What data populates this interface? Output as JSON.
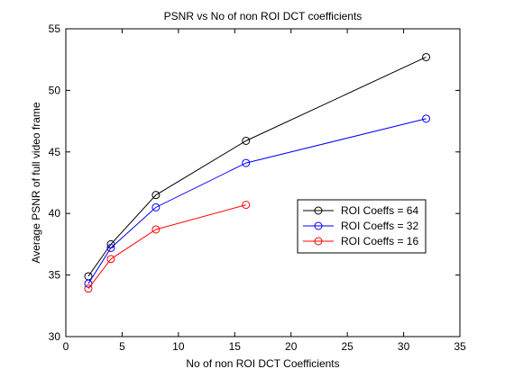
{
  "chart_data": {
    "type": "line",
    "title": "PSNR vs No of non ROI DCT coefficients",
    "xlabel": "No of non ROI DCT Coefficients",
    "ylabel": "Average PSNR of full video frame",
    "xlim": [
      0,
      35
    ],
    "ylim": [
      30,
      55
    ],
    "xticks": [
      0,
      5,
      10,
      15,
      20,
      25,
      30,
      35
    ],
    "yticks": [
      30,
      35,
      40,
      45,
      50,
      55
    ],
    "grid": false,
    "legend_position": "right",
    "marker": "circle",
    "series": [
      {
        "name": "ROI Coeffs = 64",
        "color": "#000000",
        "x": [
          2,
          4,
          8,
          16,
          32
        ],
        "y": [
          34.9,
          37.5,
          41.5,
          45.9,
          52.7
        ]
      },
      {
        "name": "ROI Coeffs = 32",
        "color": "#0000ff",
        "x": [
          2,
          4,
          8,
          16,
          32
        ],
        "y": [
          34.3,
          37.2,
          40.5,
          44.1,
          47.7
        ]
      },
      {
        "name": "ROI Coeffs = 16",
        "color": "#ff0000",
        "x": [
          2,
          4,
          8,
          16
        ],
        "y": [
          33.9,
          36.3,
          38.7,
          40.7
        ]
      }
    ]
  }
}
